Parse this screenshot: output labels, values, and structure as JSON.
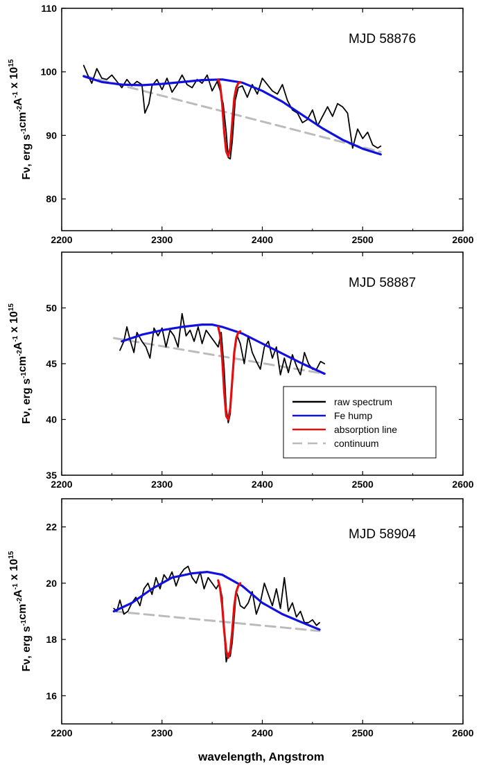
{
  "chart_data": [
    {
      "type": "line",
      "title": "MJD 58876",
      "ylim": [
        75,
        110
      ],
      "xlim": [
        2200,
        2600
      ],
      "xticks": [
        2200,
        2300,
        2400,
        2500,
        2600
      ],
      "yticks": [
        80,
        90,
        100,
        110
      ],
      "xrange_data": [
        2222,
        2518
      ],
      "raw_spectrum": {
        "x": [
          2222,
          2226,
          2230,
          2235,
          2240,
          2245,
          2250,
          2255,
          2260,
          2265,
          2270,
          2275,
          2280,
          2283,
          2287,
          2290,
          2295,
          2300,
          2305,
          2310,
          2315,
          2320,
          2325,
          2330,
          2335,
          2340,
          2345,
          2350,
          2355,
          2358,
          2361,
          2364,
          2366,
          2368,
          2370,
          2373,
          2376,
          2380,
          2385,
          2390,
          2395,
          2400,
          2405,
          2410,
          2415,
          2420,
          2425,
          2430,
          2435,
          2440,
          2445,
          2450,
          2455,
          2460,
          2465,
          2470,
          2475,
          2480,
          2485,
          2490,
          2495,
          2500,
          2505,
          2510,
          2515,
          2518
        ],
        "y": [
          101.0,
          99.5,
          98.2,
          100.5,
          99.0,
          98.8,
          99.5,
          98.5,
          97.5,
          98.8,
          97.8,
          98.5,
          98.0,
          93.5,
          95.0,
          97.8,
          98.8,
          97.2,
          99.0,
          96.8,
          98.0,
          99.5,
          98.0,
          97.5,
          98.8,
          98.2,
          99.5,
          97.0,
          98.5,
          97.0,
          95.0,
          90.5,
          86.5,
          86.3,
          89.0,
          95.5,
          97.5,
          97.8,
          96.0,
          98.0,
          96.5,
          99.0,
          98.0,
          97.0,
          96.5,
          98.0,
          95.5,
          94.0,
          93.5,
          92.0,
          92.5,
          94.0,
          91.5,
          93.0,
          94.5,
          93.0,
          95.0,
          94.5,
          93.5,
          88.0,
          91.0,
          89.5,
          90.5,
          88.5,
          88.0,
          88.3
        ]
      },
      "fe_hump": {
        "x": [
          2222,
          2240,
          2260,
          2280,
          2300,
          2320,
          2340,
          2360,
          2380,
          2400,
          2420,
          2440,
          2460,
          2480,
          2500,
          2518
        ],
        "y": [
          99.3,
          98.4,
          98.0,
          97.9,
          98.1,
          98.4,
          98.7,
          98.8,
          98.3,
          97.0,
          95.3,
          93.2,
          91.1,
          89.3,
          87.9,
          87.0
        ]
      },
      "absorption_line": {
        "x": [
          2356,
          2358,
          2360,
          2362,
          2364,
          2366,
          2368,
          2370,
          2372,
          2374,
          2376,
          2378
        ],
        "y": [
          98.8,
          97.8,
          95.0,
          90.5,
          87.5,
          86.7,
          88.0,
          92.0,
          95.8,
          97.5,
          98.2,
          98.4
        ]
      },
      "continuum": {
        "x": [
          2222,
          2518
        ],
        "y": [
          99.4,
          87.4
        ]
      }
    },
    {
      "type": "line",
      "title": "MJD 58887",
      "ylim": [
        35,
        55
      ],
      "xlim": [
        2200,
        2600
      ],
      "xticks": [
        2200,
        2300,
        2400,
        2500,
        2600
      ],
      "yticks": [
        35,
        40,
        45,
        50
      ],
      "raw_spectrum": {
        "x": [
          2258,
          2262,
          2265,
          2268,
          2272,
          2275,
          2280,
          2284,
          2288,
          2292,
          2296,
          2300,
          2304,
          2308,
          2312,
          2316,
          2320,
          2324,
          2328,
          2332,
          2336,
          2340,
          2344,
          2348,
          2352,
          2356,
          2359,
          2362,
          2364,
          2366,
          2368,
          2370,
          2372,
          2375,
          2378,
          2382,
          2386,
          2390,
          2394,
          2398,
          2402,
          2406,
          2410,
          2414,
          2418,
          2422,
          2426,
          2430,
          2434,
          2438,
          2442,
          2446,
          2450,
          2454,
          2458,
          2462
        ],
        "y": [
          46.2,
          47.0,
          48.3,
          47.2,
          46.0,
          47.8,
          47.0,
          46.5,
          45.5,
          48.2,
          47.5,
          48.2,
          46.5,
          48.0,
          47.5,
          46.5,
          49.5,
          47.5,
          48.0,
          47.0,
          48.3,
          46.8,
          48.0,
          47.5,
          47.0,
          46.5,
          47.8,
          44.5,
          41.0,
          39.7,
          40.5,
          43.5,
          46.0,
          47.5,
          46.8,
          45.0,
          47.5,
          46.0,
          45.2,
          44.5,
          46.5,
          47.0,
          45.5,
          46.5,
          44.0,
          45.5,
          44.2,
          45.8,
          44.8,
          44.0,
          46.0,
          45.0,
          44.5,
          44.5,
          45.2,
          45.0
        ]
      },
      "fe_hump": {
        "x": [
          2260,
          2280,
          2300,
          2320,
          2340,
          2350,
          2360,
          2380,
          2400,
          2420,
          2440,
          2462
        ],
        "y": [
          47.0,
          47.6,
          48.0,
          48.3,
          48.5,
          48.5,
          48.3,
          47.7,
          46.8,
          45.9,
          45.0,
          44.1
        ]
      },
      "absorption_line": {
        "x": [
          2356,
          2358,
          2360,
          2362,
          2364,
          2366,
          2368,
          2370,
          2372,
          2374,
          2376,
          2378
        ],
        "y": [
          48.3,
          47.5,
          45.5,
          42.5,
          40.3,
          40.0,
          41.0,
          43.5,
          46.0,
          47.3,
          47.8,
          47.9
        ]
      },
      "continuum": {
        "x": [
          2252,
          2462
        ],
        "y": [
          47.3,
          44.1
        ]
      }
    },
    {
      "type": "line",
      "title": "MJD 58904",
      "ylim": [
        15,
        23
      ],
      "xlim": [
        2200,
        2600
      ],
      "xticks": [
        2200,
        2300,
        2400,
        2500,
        2600
      ],
      "yticks": [
        16,
        18,
        20,
        22
      ],
      "raw_spectrum": {
        "x": [
          2252,
          2255,
          2258,
          2262,
          2266,
          2270,
          2274,
          2278,
          2282,
          2286,
          2290,
          2294,
          2298,
          2302,
          2306,
          2310,
          2314,
          2318,
          2322,
          2326,
          2330,
          2334,
          2338,
          2342,
          2346,
          2350,
          2354,
          2357,
          2360,
          2362,
          2364,
          2366,
          2368,
          2370,
          2372,
          2374,
          2376,
          2378,
          2382,
          2386,
          2390,
          2394,
          2398,
          2402,
          2406,
          2410,
          2414,
          2418,
          2422,
          2426,
          2430,
          2434,
          2438,
          2442,
          2446,
          2450,
          2454,
          2457
        ],
        "y": [
          19.1,
          19.0,
          19.4,
          18.9,
          19.0,
          19.3,
          19.5,
          19.2,
          19.8,
          20.0,
          19.6,
          20.2,
          19.8,
          20.3,
          20.1,
          20.4,
          19.9,
          20.3,
          20.5,
          20.6,
          20.2,
          20.0,
          20.4,
          19.8,
          20.2,
          20.0,
          19.8,
          20.0,
          19.5,
          18.2,
          17.2,
          17.5,
          17.4,
          17.9,
          18.8,
          19.7,
          19.5,
          19.2,
          19.1,
          19.3,
          19.7,
          18.9,
          19.3,
          20.0,
          19.6,
          19.2,
          19.8,
          19.1,
          20.2,
          19.0,
          19.3,
          18.8,
          19.0,
          18.6,
          18.6,
          18.7,
          18.5,
          18.6
        ]
      },
      "fe_hump": {
        "x": [
          2252,
          2270,
          2290,
          2310,
          2330,
          2345,
          2360,
          2380,
          2400,
          2420,
          2440,
          2457
        ],
        "y": [
          19.0,
          19.3,
          19.8,
          20.2,
          20.35,
          20.4,
          20.3,
          19.9,
          19.3,
          18.9,
          18.6,
          18.35
        ]
      },
      "absorption_line": {
        "x": [
          2356,
          2358,
          2360,
          2362,
          2364,
          2366,
          2368,
          2370,
          2372,
          2374,
          2376,
          2378
        ],
        "y": [
          20.1,
          19.8,
          19.2,
          18.3,
          17.6,
          17.35,
          17.6,
          18.3,
          19.2,
          19.7,
          19.9,
          20.0
        ]
      },
      "continuum": {
        "x": [
          2252,
          2457
        ],
        "y": [
          19.0,
          18.3
        ]
      }
    }
  ],
  "ylabel": {
    "main": "Fν, erg s",
    "sup1": "-1",
    "cm": "cm",
    "sup2": "-2",
    "A": "A",
    "sup3": "-1",
    "x10": " x 10",
    "sup4": "15"
  },
  "xlabel": "wavelength, Angstrom",
  "legend": [
    {
      "label": "raw spectrum",
      "color": "#000000",
      "dash": false
    },
    {
      "label": "Fe hump",
      "color": "#1010e0",
      "dash": false
    },
    {
      "label": "absorption line",
      "color": "#e01010",
      "dash": false
    },
    {
      "label": "continuum",
      "color": "#bbbbbb",
      "dash": true
    }
  ],
  "colors": {
    "raw": "#000000",
    "fe": "#1010e0",
    "abs": "#e01010",
    "cont": "#bbbbbb"
  }
}
